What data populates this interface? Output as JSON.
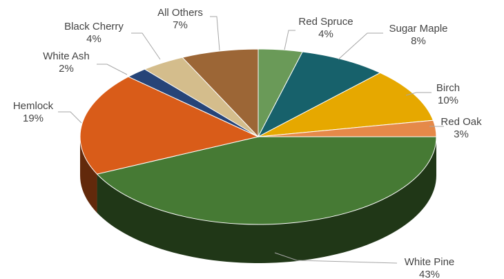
{
  "chart_data": {
    "type": "pie",
    "three_d": true,
    "title": "",
    "slices": [
      {
        "label": "Red Spruce",
        "pct_label": "4%",
        "value": 4,
        "color": "#6a9a58"
      },
      {
        "label": "Sugar Maple",
        "pct_label": "8%",
        "value": 8,
        "color": "#17616b"
      },
      {
        "label": "Birch",
        "pct_label": "10%",
        "value": 10,
        "color": "#e6a800"
      },
      {
        "label": "Red Oak",
        "pct_label": "3%",
        "value": 3,
        "color": "#e58949"
      },
      {
        "label": "White Pine",
        "pct_label": "43%",
        "value": 43,
        "color": "#467a34"
      },
      {
        "label": "Hemlock",
        "pct_label": "19%",
        "value": 19,
        "color": "#d95c19"
      },
      {
        "label": "White Ash",
        "pct_label": "2%",
        "value": 2,
        "color": "#264478"
      },
      {
        "label": "Black Cherry",
        "pct_label": "4%",
        "value": 4,
        "color": "#d4bd8c"
      },
      {
        "label": "All Others",
        "pct_label": "7%",
        "value": 7,
        "color": "#9c6636"
      }
    ]
  }
}
